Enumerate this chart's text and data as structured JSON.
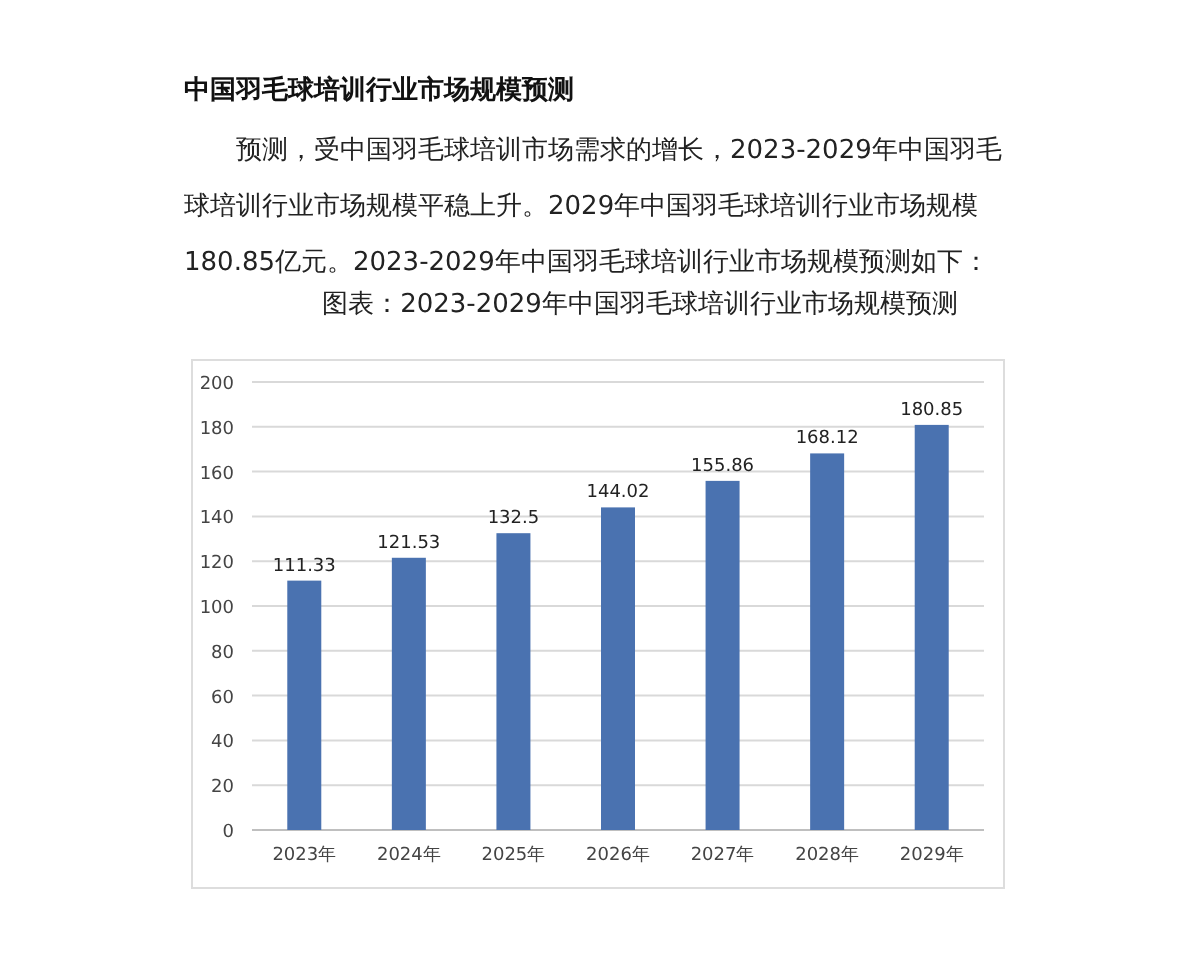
{
  "chart_data": {
    "type": "bar",
    "title": "中国羽毛球培训行业市场规模预测",
    "annotations": [
      "预测，受中国羽毛球培训市场需求的增长，2023-2029年中国羽毛球培训行业市场规模平稳上升。2029年中国羽毛球培训行业市场规模180.85亿元。2023-2029年中国羽毛球培训行业市场规模预测如下："
    ],
    "subtitle": "图表：2023-2029年中国羽毛球培训行业市场规模预测",
    "categories": [
      "2023年",
      "2024年",
      "2025年",
      "2026年",
      "2027年",
      "2028年",
      "2029年"
    ],
    "values": [
      111.33,
      121.53,
      132.5,
      144.02,
      155.86,
      168.12,
      180.85
    ],
    "color": "#4a72b0",
    "ylim": [
      0,
      200
    ],
    "yticks": [
      0,
      20,
      40,
      60,
      80,
      100,
      120,
      140,
      160,
      180,
      200
    ],
    "grid": "y",
    "data_labels": true
  }
}
